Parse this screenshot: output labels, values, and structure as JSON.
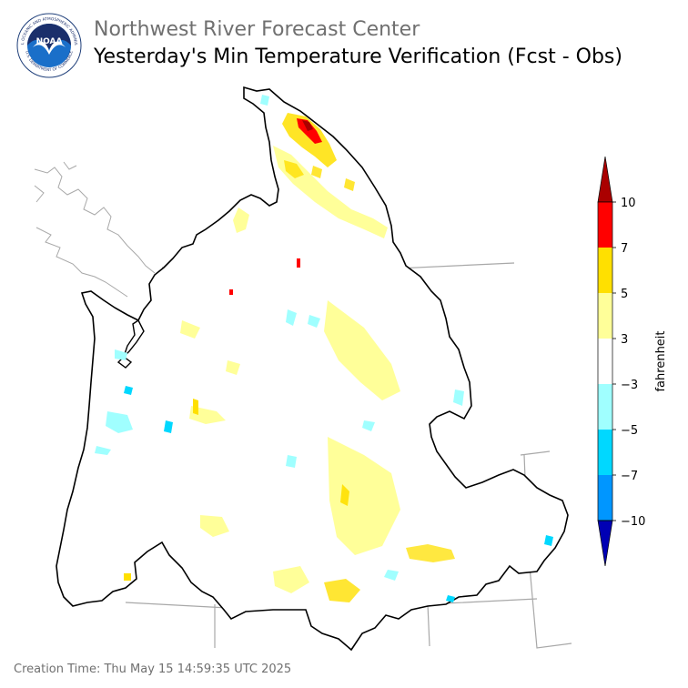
{
  "header": {
    "agency": "Northwest River Forecast Center",
    "title": "Yesterday's Min Temperature Verification (Fcst - Obs)"
  },
  "logo": {
    "ring_text_top": "NATIONAL OCEANIC AND ATMOSPHERIC ADMINISTRATION",
    "ring_text_bottom": "U.S. DEPARTMENT OF COMMERCE",
    "center_text": "NOAA"
  },
  "colorbar": {
    "unit": "fahrenheit",
    "ticks": [
      "10",
      "7",
      "5",
      "3",
      "−3",
      "−5",
      "−7",
      "−10"
    ],
    "colors": {
      "over": "#aa0000",
      "b7_10": "#ff0000",
      "b5_7": "#ffe000",
      "b3_5": "#ffff99",
      "b_3_3": "#ffffff",
      "b_5_3": "#a0ffff",
      "b_7_5": "#00d8ff",
      "b_10_7": "#0096ff",
      "under": "#0000b4"
    }
  },
  "footer": {
    "creation_time": "Creation Time: Thu May 15 14:59:35 UTC 2025"
  }
}
